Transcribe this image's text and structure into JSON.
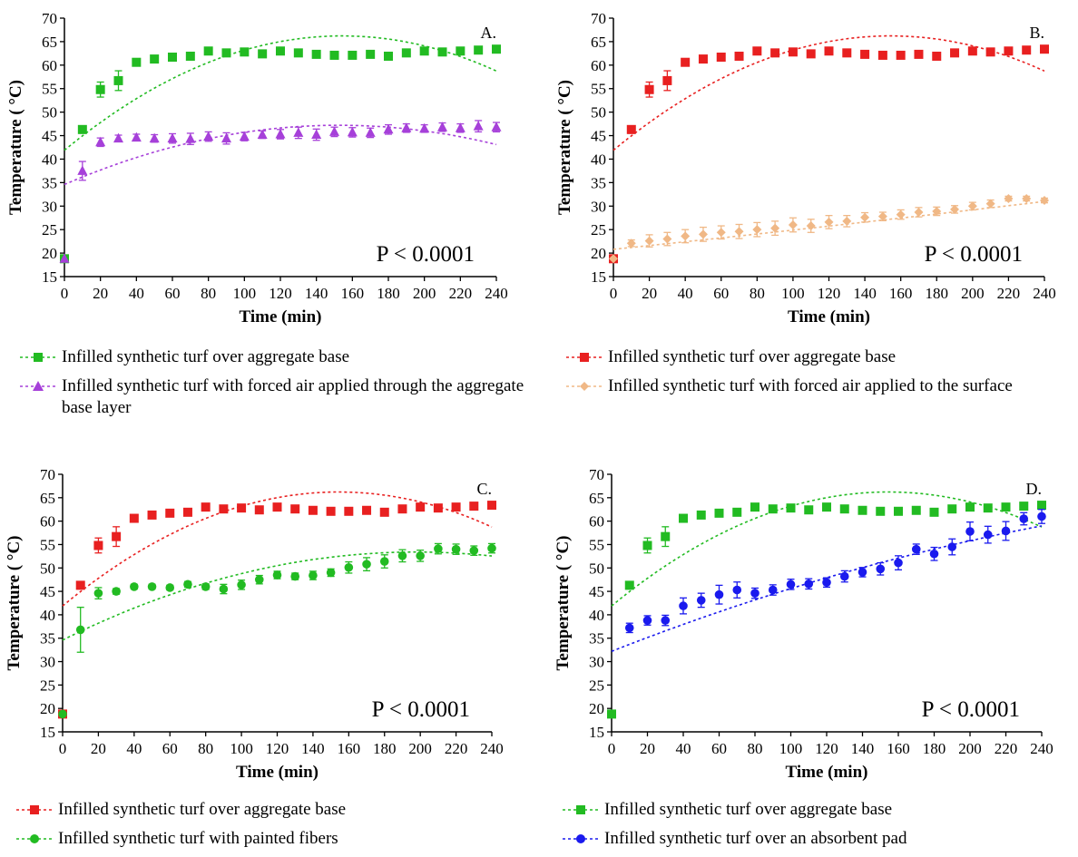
{
  "chart_data": [
    {
      "type": "scatter",
      "panel_label": "A.",
      "annotation": "P < 0.0001",
      "xlabel": "Time (min)",
      "ylabel": "Temperature ( °C)",
      "xlim": [
        0,
        240
      ],
      "ylim": [
        15,
        70
      ],
      "xticks": [
        "0",
        "20",
        "40",
        "60",
        "80",
        "100",
        "120",
        "140",
        "160",
        "180",
        "200",
        "220",
        "240"
      ],
      "yticks": [
        "15",
        "20",
        "25",
        "30",
        "35",
        "40",
        "45",
        "50",
        "55",
        "60",
        "65",
        "70"
      ],
      "x": [
        0,
        10,
        20,
        30,
        40,
        50,
        60,
        70,
        80,
        90,
        100,
        110,
        120,
        130,
        140,
        150,
        160,
        170,
        180,
        190,
        200,
        210,
        220,
        230,
        240
      ],
      "series": [
        {
          "name": "Infilled synthetic turf over aggregate base",
          "color": "#22bb22",
          "marker": "square",
          "values": [
            18.8,
            46.3,
            54.8,
            56.7,
            60.6,
            61.3,
            61.7,
            61.9,
            63.0,
            62.6,
            62.8,
            62.4,
            63.0,
            62.6,
            62.3,
            62.1,
            62.1,
            62.3,
            61.9,
            62.6,
            63.0,
            62.8,
            63.0,
            63.2,
            63.4
          ],
          "errors": [
            0,
            0.8,
            1.6,
            2.1,
            0.5,
            0.4,
            0.4,
            0.6,
            0.5,
            0.4,
            0.4,
            0.4,
            0.5,
            0.4,
            0.4,
            0.4,
            0.4,
            0.4,
            0.4,
            0.4,
            0.4,
            0.4,
            0.4,
            0.4,
            0.4
          ],
          "fit": [
            41.9,
            0.315,
            -0.00102
          ]
        },
        {
          "name": "Infilled synthetic turf with forced air applied through the aggregate base layer",
          "color": "#a640d9",
          "marker": "triangle",
          "values": [
            18.8,
            37.5,
            43.6,
            44.4,
            44.6,
            44.4,
            44.4,
            44.3,
            44.8,
            44.4,
            44.8,
            45.2,
            45.3,
            45.6,
            45.2,
            45.8,
            45.7,
            45.6,
            46.3,
            46.6,
            46.5,
            46.8,
            46.6,
            47.0,
            46.8
          ],
          "errors": [
            0,
            2.0,
            0.9,
            0.7,
            0.7,
            0.8,
            1.0,
            1.2,
            1.0,
            1.2,
            0.9,
            0.8,
            1.0,
            1.2,
            1.2,
            1.0,
            1.0,
            1.0,
            1.0,
            0.9,
            0.8,
            0.9,
            0.9,
            1.2,
            1.0
          ],
          "fit": [
            34.6,
            0.165,
            -0.00054
          ]
        }
      ]
    },
    {
      "type": "scatter",
      "panel_label": "B.",
      "annotation": "P < 0.0001",
      "xlabel": "Time (min)",
      "ylabel": "Temperature ( °C)",
      "xlim": [
        0,
        240
      ],
      "ylim": [
        15,
        70
      ],
      "xticks": [
        "0",
        "20",
        "40",
        "60",
        "80",
        "100",
        "120",
        "140",
        "160",
        "180",
        "200",
        "220",
        "240"
      ],
      "yticks": [
        "15",
        "20",
        "25",
        "30",
        "35",
        "40",
        "45",
        "50",
        "55",
        "60",
        "65",
        "70"
      ],
      "x": [
        0,
        10,
        20,
        30,
        40,
        50,
        60,
        70,
        80,
        90,
        100,
        110,
        120,
        130,
        140,
        150,
        160,
        170,
        180,
        190,
        200,
        210,
        220,
        230,
        240
      ],
      "series": [
        {
          "name": "Infilled synthetic turf over aggregate base",
          "color": "#e82020",
          "marker": "square",
          "values": [
            18.8,
            46.3,
            54.8,
            56.7,
            60.6,
            61.3,
            61.7,
            61.9,
            63.0,
            62.6,
            62.8,
            62.4,
            63.0,
            62.6,
            62.3,
            62.1,
            62.1,
            62.3,
            61.9,
            62.6,
            63.0,
            62.8,
            63.0,
            63.2,
            63.4
          ],
          "errors": [
            0,
            0.8,
            1.6,
            2.1,
            0.5,
            0.4,
            0.4,
            0.6,
            0.5,
            0.4,
            0.4,
            0.4,
            0.5,
            0.4,
            0.4,
            0.4,
            0.4,
            0.4,
            0.4,
            0.4,
            0.4,
            0.4,
            0.4,
            0.4,
            0.4
          ],
          "fit": [
            41.9,
            0.315,
            -0.00102
          ]
        },
        {
          "name": "Infilled synthetic turf with forced air applied to the surface",
          "color": "#f0b886",
          "marker": "diamond",
          "values": [
            18.8,
            22.1,
            22.6,
            23.0,
            23.6,
            24.0,
            24.4,
            24.6,
            25.0,
            25.3,
            26.0,
            25.8,
            26.6,
            26.8,
            27.6,
            27.8,
            28.2,
            28.7,
            28.9,
            29.3,
            30.0,
            30.5,
            31.6,
            31.6,
            31.2
          ],
          "errors": [
            0,
            0.7,
            1.3,
            1.4,
            1.4,
            1.5,
            1.4,
            1.5,
            1.5,
            1.5,
            1.5,
            1.4,
            1.4,
            1.2,
            1.0,
            0.9,
            1.0,
            1.0,
            0.9,
            0.8,
            0.8,
            0.8,
            0.5,
            0.5,
            0.5
          ],
          "fit": [
            20.8,
            0.04,
            1e-05
          ]
        }
      ]
    },
    {
      "type": "scatter",
      "panel_label": "C.",
      "annotation": "P < 0.0001",
      "xlabel": "Time (min)",
      "ylabel": "Temperature ( °C)",
      "xlim": [
        0,
        240
      ],
      "ylim": [
        15,
        70
      ],
      "xticks": [
        "0",
        "20",
        "40",
        "60",
        "80",
        "100",
        "120",
        "140",
        "160",
        "180",
        "200",
        "220",
        "240"
      ],
      "yticks": [
        "15",
        "20",
        "25",
        "30",
        "35",
        "40",
        "45",
        "50",
        "55",
        "60",
        "65",
        "70"
      ],
      "x": [
        0,
        10,
        20,
        30,
        40,
        50,
        60,
        70,
        80,
        90,
        100,
        110,
        120,
        130,
        140,
        150,
        160,
        170,
        180,
        190,
        200,
        210,
        220,
        230,
        240
      ],
      "series": [
        {
          "name": "Infilled synthetic turf over aggregate base",
          "color": "#e82020",
          "marker": "square",
          "values": [
            18.8,
            46.3,
            54.8,
            56.7,
            60.6,
            61.3,
            61.7,
            61.9,
            63.0,
            62.6,
            62.8,
            62.4,
            63.0,
            62.6,
            62.3,
            62.1,
            62.1,
            62.3,
            61.9,
            62.6,
            63.0,
            62.8,
            63.0,
            63.2,
            63.4
          ],
          "errors": [
            0,
            0.8,
            1.6,
            2.1,
            0.5,
            0.4,
            0.4,
            0.6,
            0.5,
            0.4,
            0.4,
            0.4,
            0.5,
            0.4,
            0.4,
            0.4,
            0.4,
            0.4,
            0.4,
            0.4,
            0.4,
            0.4,
            0.4,
            0.4,
            0.4
          ],
          "fit": [
            41.9,
            0.315,
            -0.00102
          ]
        },
        {
          "name": "Infilled synthetic turf with painted fibers",
          "color": "#22bb22",
          "marker": "circle",
          "values": [
            18.8,
            36.8,
            44.6,
            45.0,
            46.0,
            46.0,
            45.8,
            46.5,
            46.0,
            45.5,
            46.4,
            47.5,
            48.5,
            48.2,
            48.4,
            49.0,
            50.1,
            50.8,
            51.4,
            52.6,
            52.6,
            54.1,
            54.0,
            53.7,
            54.2
          ],
          "errors": [
            0,
            4.8,
            1.2,
            0.6,
            0.5,
            0.5,
            0.5,
            0.6,
            0.6,
            1.0,
            1.0,
            0.9,
            0.8,
            0.7,
            0.9,
            0.8,
            1.2,
            1.4,
            1.4,
            1.3,
            1.2,
            1.1,
            1.1,
            1.0,
            1.0
          ],
          "fit": [
            34.6,
            0.19,
            -0.00048
          ]
        }
      ]
    },
    {
      "type": "scatter",
      "panel_label": "D.",
      "annotation": "P < 0.0001",
      "xlabel": "Time (min)",
      "ylabel": "Temperature ( °C)",
      "xlim": [
        0,
        240
      ],
      "ylim": [
        15,
        70
      ],
      "xticks": [
        "0",
        "20",
        "40",
        "60",
        "80",
        "100",
        "120",
        "140",
        "160",
        "180",
        "200",
        "220",
        "240"
      ],
      "yticks": [
        "15",
        "20",
        "25",
        "30",
        "35",
        "40",
        "45",
        "50",
        "55",
        "60",
        "65",
        "70"
      ],
      "x": [
        0,
        10,
        20,
        30,
        40,
        50,
        60,
        70,
        80,
        90,
        100,
        110,
        120,
        130,
        140,
        150,
        160,
        170,
        180,
        190,
        200,
        210,
        220,
        230,
        240
      ],
      "series": [
        {
          "name": "Infilled synthetic turf over aggregate base",
          "color": "#22bb22",
          "marker": "square",
          "values": [
            18.8,
            46.3,
            54.8,
            56.7,
            60.6,
            61.3,
            61.7,
            61.9,
            63.0,
            62.6,
            62.8,
            62.4,
            63.0,
            62.6,
            62.3,
            62.1,
            62.1,
            62.3,
            61.9,
            62.6,
            63.0,
            62.8,
            63.0,
            63.2,
            63.4
          ],
          "errors": [
            0,
            0.8,
            1.6,
            2.1,
            0.5,
            0.4,
            0.4,
            0.6,
            0.5,
            0.4,
            0.4,
            0.4,
            0.5,
            0.4,
            0.4,
            0.4,
            0.4,
            0.4,
            0.4,
            0.4,
            0.4,
            0.4,
            0.4,
            0.4,
            0.4
          ],
          "fit": [
            41.9,
            0.315,
            -0.00102
          ]
        },
        {
          "name": "Infilled synthetic turf over an absorbent pad",
          "color": "#1a1aee",
          "marker": "circle",
          "values": [
            null,
            37.2,
            38.8,
            38.8,
            41.9,
            43.1,
            44.3,
            45.3,
            44.6,
            45.3,
            46.5,
            46.6,
            46.9,
            48.2,
            49.1,
            49.8,
            51.1,
            54.0,
            53.0,
            54.5,
            57.8,
            57.1,
            57.9,
            60.5,
            61.0
          ],
          "errors": [
            0,
            1.0,
            1.0,
            1.1,
            1.7,
            1.5,
            2.0,
            1.7,
            1.1,
            1.1,
            1.1,
            1.1,
            1.0,
            1.2,
            1.0,
            1.3,
            1.5,
            1.1,
            1.4,
            1.7,
            2.0,
            1.8,
            2.0,
            1.3,
            1.5
          ],
          "fit": [
            32.2,
            0.15,
            -0.00016
          ]
        }
      ]
    }
  ]
}
